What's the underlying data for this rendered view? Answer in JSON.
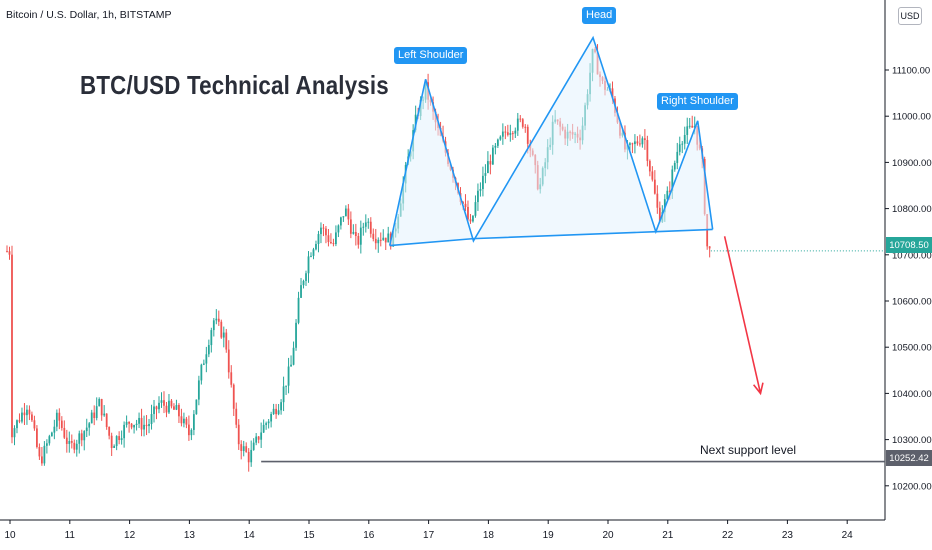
{
  "header": {
    "symbol_title": "Bitcoin / U.S. Dollar, 1h, BITSTAMP",
    "currency_badge": "USD"
  },
  "title": "BTC/USD Technical Analysis",
  "annotations": {
    "left_shoulder": "Left Shoulder",
    "head": "Head",
    "right_shoulder": "Right Shoulder",
    "support_text": "Next support level"
  },
  "colors": {
    "up": "#26a69a",
    "down": "#ef5350",
    "pattern_line": "#2196f3",
    "pattern_fill": "#e3f2fd",
    "arrow": "#f23645",
    "support_line": "#5d606b",
    "current_price_tag": "#26a69a",
    "support_tag": "#5d606b"
  },
  "chart_data": {
    "type": "candlestick",
    "x_ticks": [
      "10",
      "11",
      "12",
      "13",
      "14",
      "15",
      "16",
      "17",
      "18",
      "19",
      "20",
      "21",
      "22",
      "23",
      "24"
    ],
    "y_ticks": [
      "11100.00",
      "11000.00",
      "10900.00",
      "10800.00",
      "10700.00",
      "10600.00",
      "10500.00",
      "10400.00",
      "10300.00",
      "10200.00"
    ],
    "ylim": [
      10140,
      11180
    ],
    "current_price": 10708.5,
    "current_price_label": "10708.50",
    "support_level": 10252.42,
    "support_label": "10252.42",
    "price_path": [
      [
        10.0,
        10310
      ],
      [
        10.3,
        10380
      ],
      [
        10.5,
        10250
      ],
      [
        10.8,
        10350
      ],
      [
        11.0,
        10280
      ],
      [
        11.3,
        10330
      ],
      [
        11.5,
        10380
      ],
      [
        11.7,
        10290
      ],
      [
        12.0,
        10340
      ],
      [
        12.3,
        10330
      ],
      [
        12.5,
        10380
      ],
      [
        12.8,
        10360
      ],
      [
        13.0,
        10310
      ],
      [
        13.2,
        10450
      ],
      [
        13.4,
        10560
      ],
      [
        13.6,
        10520
      ],
      [
        13.8,
        10300
      ],
      [
        14.0,
        10260
      ],
      [
        14.2,
        10320
      ],
      [
        14.5,
        10380
      ],
      [
        14.7,
        10460
      ],
      [
        14.85,
        10620
      ],
      [
        15.0,
        10700
      ],
      [
        15.2,
        10760
      ],
      [
        15.4,
        10720
      ],
      [
        15.6,
        10800
      ],
      [
        15.8,
        10720
      ],
      [
        15.95,
        10780
      ],
      [
        16.1,
        10740
      ],
      [
        16.25,
        10740
      ],
      [
        16.4,
        10730
      ],
      [
        16.6,
        10870
      ],
      [
        16.8,
        11000
      ],
      [
        16.95,
        11060
      ],
      [
        17.15,
        10970
      ],
      [
        17.4,
        10880
      ],
      [
        17.7,
        10760
      ],
      [
        17.8,
        10820
      ],
      [
        18.0,
        10900
      ],
      [
        18.3,
        10970
      ],
      [
        18.6,
        10990
      ],
      [
        18.85,
        10840
      ],
      [
        19.1,
        10990
      ],
      [
        19.3,
        10960
      ],
      [
        19.55,
        10960
      ],
      [
        19.75,
        11140
      ],
      [
        19.9,
        11070
      ],
      [
        20.05,
        11050
      ],
      [
        20.3,
        10920
      ],
      [
        20.6,
        10960
      ],
      [
        20.85,
        10780
      ],
      [
        21.0,
        10830
      ],
      [
        21.2,
        10950
      ],
      [
        21.45,
        10980
      ],
      [
        21.58,
        10890
      ],
      [
        21.65,
        10720
      ],
      [
        21.7,
        10708
      ]
    ],
    "head_and_shoulders": [
      {
        "x": 16.35,
        "y": 10720
      },
      {
        "x": 16.95,
        "y": 11080
      },
      {
        "x": 17.75,
        "y": 10730
      },
      {
        "x": 19.75,
        "y": 11170
      },
      {
        "x": 20.8,
        "y": 10750
      },
      {
        "x": 21.5,
        "y": 10990
      },
      {
        "x": 21.75,
        "y": 10755
      }
    ],
    "neckline": [
      {
        "x": 16.35,
        "y": 10720
      },
      {
        "x": 17.75,
        "y": 10735
      },
      {
        "x": 20.8,
        "y": 10750
      },
      {
        "x": 21.75,
        "y": 10755
      }
    ],
    "projection_arrow": {
      "from": {
        "x": 21.95,
        "y": 10740
      },
      "to": {
        "x": 22.55,
        "y": 10400
      }
    },
    "support_line_x_start": 14.2
  }
}
